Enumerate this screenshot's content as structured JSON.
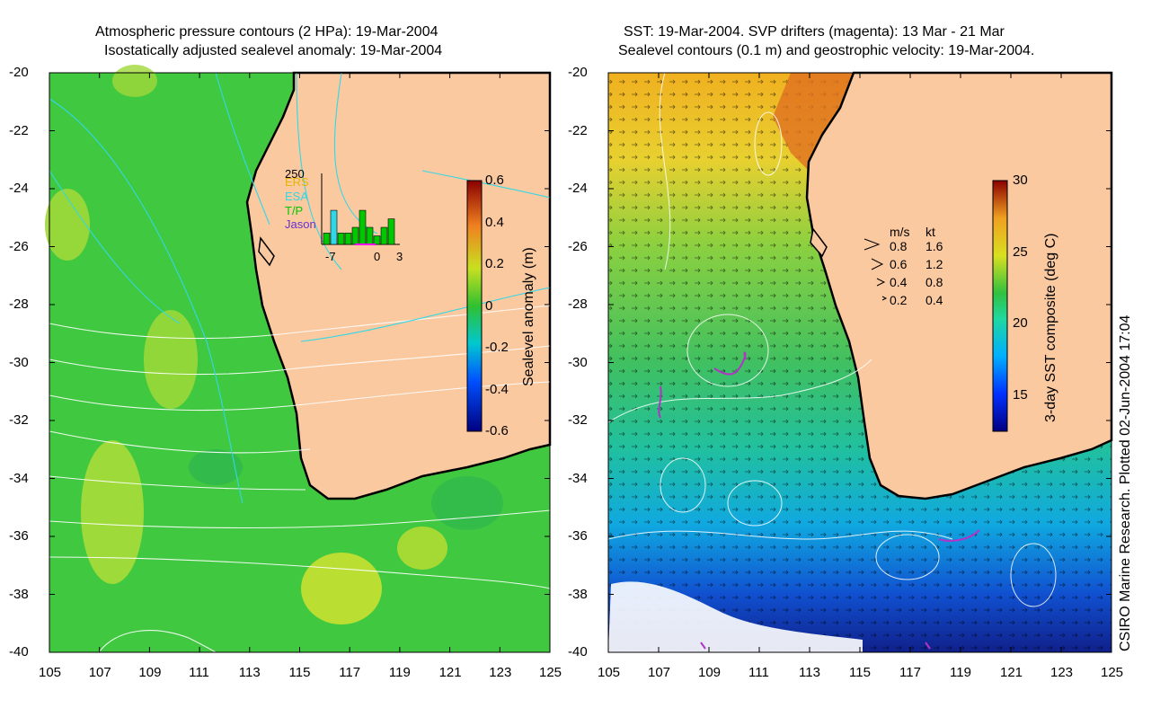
{
  "colors": {
    "land": "#fbc9a0",
    "coast": "#000000",
    "ocean_green": "#3cc83c",
    "pressure_contour": "#ffffff",
    "pressure_contour_cyan": "#32d7e6",
    "drifter": "#b432c8"
  },
  "left_panel": {
    "title_line1": "Atmospheric pressure contours (2 HPa): 19-Mar-2004",
    "title_line2": "Isostatically adjusted sealevel anomaly: 19-Mar-2004",
    "colorbar_label": "Sealevel anomaly (m)",
    "colorbar_ticks": [
      "0.6",
      "0.4",
      "0.2",
      "0",
      "-0.2",
      "-0.4",
      "-0.6"
    ],
    "inset": {
      "ymax": "250",
      "legend": [
        "ERS",
        "ESA",
        "T/P",
        "Jason"
      ],
      "legend_colors": [
        "#e6b400",
        "#32d7e6",
        "#00c800",
        "#6432c8"
      ],
      "x_ticks": [
        "-7",
        "0",
        "3"
      ],
      "bar_values": [
        40,
        120,
        40,
        40,
        60,
        120,
        60,
        30,
        60,
        90
      ]
    }
  },
  "right_panel": {
    "title_line1": "SST: 19-Mar-2004. SVP drifters (magenta): 13 Mar - 21 Mar",
    "title_line2": "Sealevel contours (0.1 m) and geostrophic velocity: 19-Mar-2004.",
    "colorbar_label": "3-day SST composite (deg C)",
    "colorbar_ticks": [
      "30",
      "25",
      "20",
      "15"
    ],
    "velocity_legend": {
      "header_ms": "m/s",
      "header_kt": "kt",
      "rows": [
        {
          "ms": "0.8",
          "kt": "1.6"
        },
        {
          "ms": "0.6",
          "kt": "1.2"
        },
        {
          "ms": "0.4",
          "kt": "0.8"
        },
        {
          "ms": "0.2",
          "kt": "0.4"
        }
      ]
    }
  },
  "axes": {
    "lat_ticks": [
      "-20",
      "-22",
      "-24",
      "-26",
      "-28",
      "-30",
      "-32",
      "-34",
      "-36",
      "-38",
      "-40"
    ],
    "lon_ticks": [
      "105",
      "107",
      "109",
      "111",
      "113",
      "115",
      "117",
      "119",
      "121",
      "123",
      "125"
    ]
  },
  "credit": "CSIRO Marine Research. Plotted 02-Jun-2004 17:04"
}
